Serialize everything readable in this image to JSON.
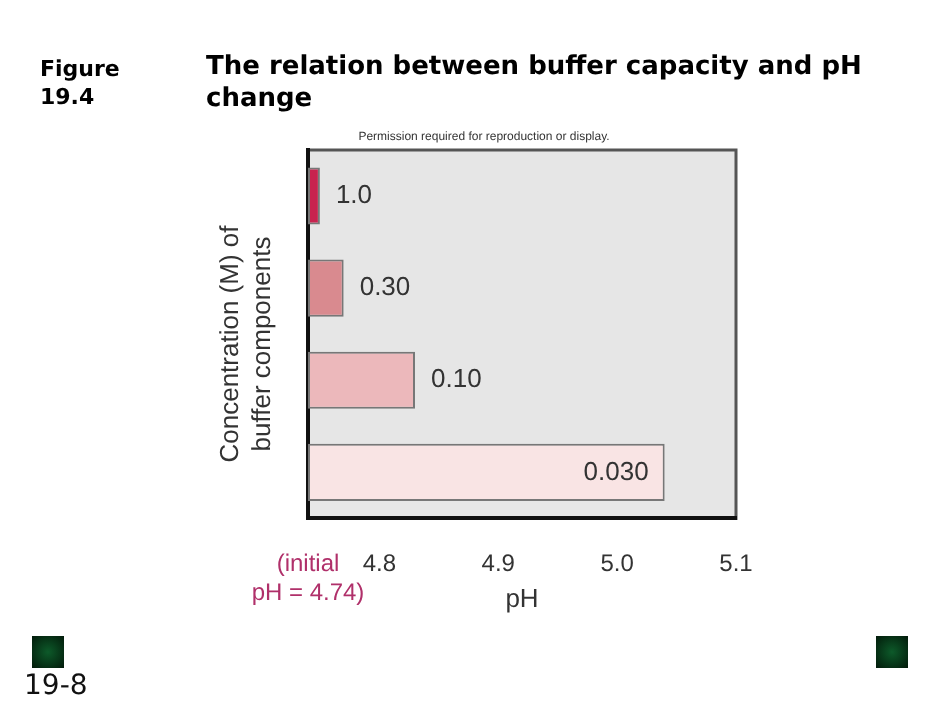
{
  "chart_data": {
    "type": "bar",
    "orientation": "horizontal",
    "title": "The relation between buffer capacity and pH change",
    "subtitle": "Figure 19.4",
    "annotations": [
      "Permission required for reproduction or display.",
      "19-8"
    ],
    "ylabel": "Concentration (M) of buffer components",
    "xlabel": "pH",
    "categories": [
      "1.0",
      "0.30",
      "0.10",
      "0.030"
    ],
    "base": [
      4.74,
      4.74,
      4.74,
      4.74
    ],
    "values": [
      0.01,
      0.03,
      0.09,
      0.3
    ],
    "colors": [
      "#c8234f",
      "#d98a8f",
      "#ecb8bb",
      "#f9e4e4"
    ],
    "xlim": [
      4.74,
      5.1
    ],
    "xticks": [
      {
        "value": 4.74,
        "label": "(initial pH = 4.74)"
      },
      4.8,
      4.9,
      {
        "value": 5,
        "label": "5.0"
      },
      5.1
    ],
    "tick_labels": "x",
    "grid": false,
    "legend": false
  }
}
